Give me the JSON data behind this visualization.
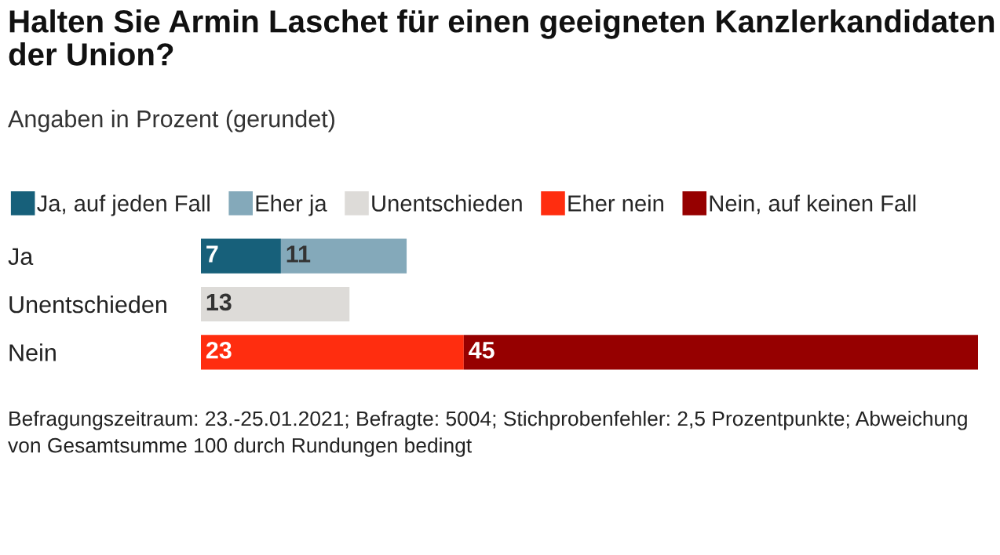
{
  "chart_data": {
    "type": "bar",
    "orientation": "horizontal",
    "stacked": true,
    "title": "Halten Sie Armin Laschet für einen geeigneten Kanzlerkandidaten der Union?",
    "subtitle": "Angaben in Prozent (gerundet)",
    "categories": [
      "Ja",
      "Unentschieden",
      "Nein"
    ],
    "series": [
      {
        "name": "Ja, auf jeden Fall",
        "color": "#17607a",
        "values": [
          7,
          null,
          null
        ]
      },
      {
        "name": "Eher ja",
        "color": "#84a9ba",
        "values": [
          11,
          null,
          null
        ]
      },
      {
        "name": "Unentschieden",
        "color": "#dddbd8",
        "values": [
          null,
          13,
          null
        ]
      },
      {
        "name": "Eher nein",
        "color": "#ff2d0f",
        "values": [
          null,
          null,
          23
        ]
      },
      {
        "name": "Nein, auf keinen Fall",
        "color": "#960000",
        "values": [
          null,
          null,
          45
        ]
      }
    ],
    "data_labels": true,
    "legend": "top",
    "grid": false,
    "tick_labels": "y",
    "annotations": [
      "Befragungszeitraum: 23.-25.01.2021; Befragte: 5004; Stichprobenfehler: 2,5 Prozentpunkte; Abweichung von Gesamtsumme 100 durch Rundungen bedingt"
    ]
  }
}
